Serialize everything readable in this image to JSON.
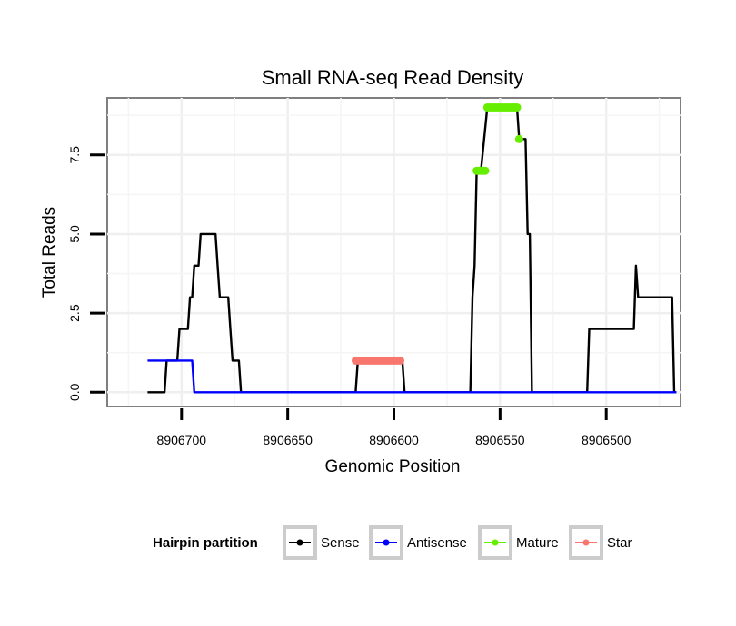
{
  "chart_data": {
    "type": "line",
    "title": "Small RNA-seq Read Density",
    "xlabel": "Genomic Position",
    "ylabel": "Total Reads",
    "xlim": [
      8906735,
      8906465
    ],
    "ylim": [
      -0.45,
      9.3
    ],
    "x_ticks": [
      8906700,
      8906650,
      8906600,
      8906550,
      8906500
    ],
    "x_tick_labels": [
      "8906700",
      "8906650",
      "8906600",
      "8906550",
      "8906500"
    ],
    "y_ticks": [
      0,
      2.5,
      5,
      7.5
    ],
    "y_tick_labels": [
      "0.0",
      "2.5",
      "5.0",
      "7.5"
    ],
    "grid": true,
    "legend_position": "bottom",
    "legend_title": "Hairpin partition",
    "series": [
      {
        "name": "Sense",
        "color": "#000000",
        "markers": false,
        "x": [
          8906716,
          8906708,
          8906707,
          8906702,
          8906701,
          8906699,
          8906698,
          8906697,
          8906696,
          8906695,
          8906694,
          8906692,
          8906691,
          8906688,
          8906687,
          8906685,
          8906684,
          8906683,
          8906682,
          8906679,
          8906678,
          8906677,
          8906676,
          8906673,
          8906672,
          8906668,
          8906667,
          8906618,
          8906617,
          8906596,
          8906595,
          8906564,
          8906563,
          8906562,
          8906561,
          8906560,
          8906559,
          8906556,
          8906555,
          8906552,
          8906551,
          8906550,
          8906549,
          8906542,
          8906541,
          8906538,
          8906537,
          8906536,
          8906535,
          8906534,
          8906532,
          8906531,
          8906530,
          8906526,
          8906525,
          8906509,
          8906508,
          8906491,
          8906490,
          8906487,
          8906486,
          8906485,
          8906484,
          8906483,
          8906482,
          8906469,
          8906468,
          8906467
        ],
        "y": [
          0,
          0,
          1,
          1,
          2,
          2,
          2,
          2,
          3,
          3,
          4,
          4,
          5,
          5,
          5,
          5,
          5,
          4,
          3,
          3,
          3,
          2,
          1,
          1,
          0,
          0,
          0,
          0,
          1,
          1,
          0,
          0,
          3,
          4,
          7,
          7,
          7,
          9,
          9,
          9,
          9,
          9,
          9,
          9,
          8,
          8,
          5,
          5,
          0,
          0,
          0,
          0,
          0,
          0,
          0,
          0,
          2,
          2,
          2,
          2,
          4,
          3,
          3,
          3,
          3,
          3,
          0,
          0
        ]
      },
      {
        "name": "Antisense",
        "color": "#0000ff",
        "markers": false,
        "x": [
          8906716,
          8906695,
          8906694,
          8906467
        ],
        "y": [
          1,
          1,
          0,
          0
        ]
      },
      {
        "name": "Mature",
        "color": "#66ee00",
        "markers": true,
        "points": [
          {
            "x": 8906561,
            "y": 7
          },
          {
            "x": 8906560,
            "y": 7
          },
          {
            "x": 8906559,
            "y": 7
          },
          {
            "x": 8906558,
            "y": 7
          },
          {
            "x": 8906557,
            "y": 7
          },
          {
            "x": 8906556,
            "y": 9
          },
          {
            "x": 8906555,
            "y": 9
          },
          {
            "x": 8906554,
            "y": 9
          },
          {
            "x": 8906553,
            "y": 9
          },
          {
            "x": 8906552,
            "y": 9
          },
          {
            "x": 8906551,
            "y": 9
          },
          {
            "x": 8906550,
            "y": 9
          },
          {
            "x": 8906549,
            "y": 9
          },
          {
            "x": 8906548,
            "y": 9
          },
          {
            "x": 8906547,
            "y": 9
          },
          {
            "x": 8906546,
            "y": 9
          },
          {
            "x": 8906545,
            "y": 9
          },
          {
            "x": 8906544,
            "y": 9
          },
          {
            "x": 8906543,
            "y": 9
          },
          {
            "x": 8906542,
            "y": 9
          },
          {
            "x": 8906541,
            "y": 8
          }
        ]
      },
      {
        "name": "Star",
        "color": "#f8766d",
        "markers": true,
        "points": [
          {
            "x": 8906618,
            "y": 1
          },
          {
            "x": 8906617,
            "y": 1
          },
          {
            "x": 8906616,
            "y": 1
          },
          {
            "x": 8906615,
            "y": 1
          },
          {
            "x": 8906614,
            "y": 1
          },
          {
            "x": 8906613,
            "y": 1
          },
          {
            "x": 8906612,
            "y": 1
          },
          {
            "x": 8906611,
            "y": 1
          },
          {
            "x": 8906610,
            "y": 1
          },
          {
            "x": 8906609,
            "y": 1
          },
          {
            "x": 8906608,
            "y": 1
          },
          {
            "x": 8906607,
            "y": 1
          },
          {
            "x": 8906606,
            "y": 1
          },
          {
            "x": 8906605,
            "y": 1
          },
          {
            "x": 8906604,
            "y": 1
          },
          {
            "x": 8906603,
            "y": 1
          },
          {
            "x": 8906602,
            "y": 1
          },
          {
            "x": 8906601,
            "y": 1
          },
          {
            "x": 8906600,
            "y": 1
          },
          {
            "x": 8906599,
            "y": 1
          },
          {
            "x": 8906598,
            "y": 1
          },
          {
            "x": 8906597,
            "y": 1
          }
        ]
      }
    ]
  }
}
